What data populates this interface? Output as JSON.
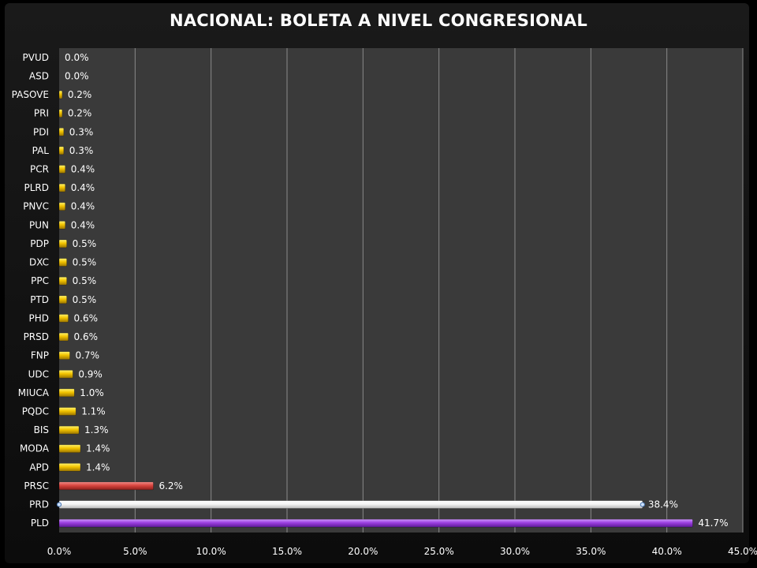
{
  "chart_data": {
    "type": "bar",
    "orientation": "horizontal",
    "title": "NACIONAL: BOLETA A NIVEL CONGRESIONAL",
    "xlim": [
      0,
      45
    ],
    "x_ticks": [
      "0.0%",
      "5.0%",
      "10.0%",
      "15.0%",
      "20.0%",
      "25.0%",
      "30.0%",
      "35.0%",
      "40.0%",
      "45.0%"
    ],
    "grid": true,
    "categories": [
      "PVUD",
      "ASD",
      "PASOVE",
      "PRI",
      "PDI",
      "PAL",
      "PCR",
      "PLRD",
      "PNVC",
      "PUN",
      "PDP",
      "DXC",
      "PPC",
      "PTD",
      "PHD",
      "PRSD",
      "FNP",
      "UDC",
      "MIUCA",
      "PQDC",
      "BIS",
      "MODA",
      "APD",
      "PRSC",
      "PRD",
      "PLD"
    ],
    "values": [
      0.0,
      0.0,
      0.2,
      0.2,
      0.3,
      0.3,
      0.4,
      0.4,
      0.4,
      0.4,
      0.5,
      0.5,
      0.5,
      0.5,
      0.6,
      0.6,
      0.7,
      0.9,
      1.0,
      1.1,
      1.3,
      1.4,
      1.4,
      6.2,
      38.4,
      41.7
    ],
    "labels": [
      "0.0%",
      "0.0%",
      "0.2%",
      "0.2%",
      "0.3%",
      "0.3%",
      "0.4%",
      "0.4%",
      "0.4%",
      "0.4%",
      "0.5%",
      "0.5%",
      "0.5%",
      "0.5%",
      "0.6%",
      "0.6%",
      "0.7%",
      "0.9%",
      "1.0%",
      "1.1%",
      "1.3%",
      "1.4%",
      "1.4%",
      "6.2%",
      "38.4%",
      "41.7%"
    ],
    "colors": {
      "default": "#f2c300",
      "PRSC": "#d9453f",
      "PRD": "#ffffff",
      "PLD": "#9b3fe0"
    },
    "plot_background": "#3a3a3a",
    "grid_color": "#8a8a8a"
  }
}
